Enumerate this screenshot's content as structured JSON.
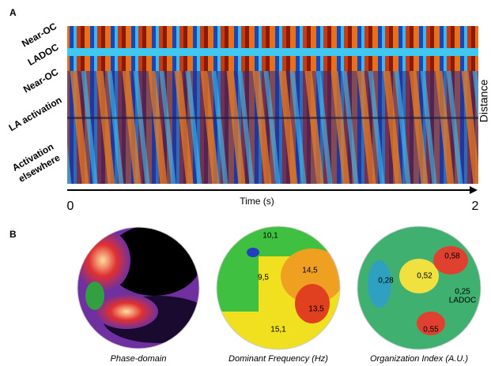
{
  "panel_a": {
    "letter": "A",
    "row_labels": [
      "Near-OC",
      "LADOC",
      "Near-OC",
      "LA activation",
      "Activation",
      "elsewhere"
    ],
    "y_label": "Distance",
    "x_label": "Time (s)",
    "x_start": "0",
    "x_end": "2"
  },
  "panel_b": {
    "letter": "B",
    "maps": [
      {
        "caption": "Phase-domain",
        "labels": []
      },
      {
        "caption": "Dominant Frequency (Hz)",
        "labels": [
          "10,1",
          "9,5",
          "14,5",
          "13,5",
          "15,1"
        ]
      },
      {
        "caption": "Organization Index (A.U.)",
        "labels": [
          "0,28",
          "0,52",
          "0,58",
          "0,25",
          "LADOC",
          "0,55"
        ]
      }
    ]
  }
}
